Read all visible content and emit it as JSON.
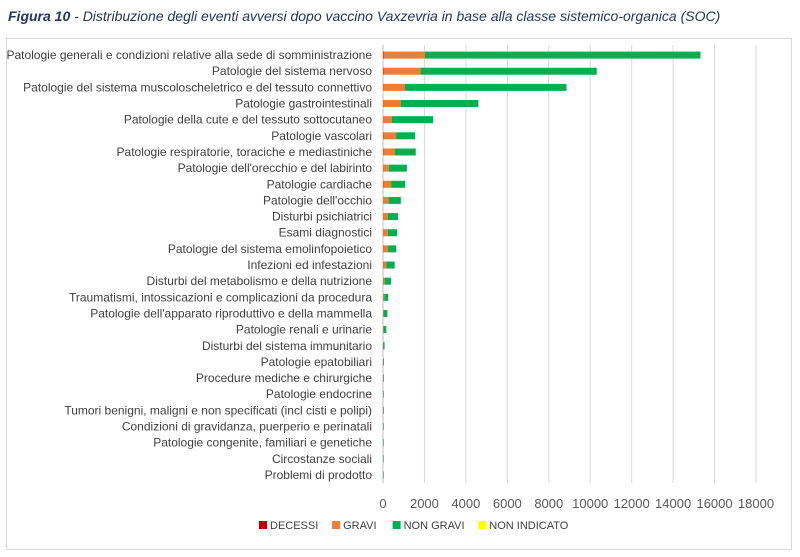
{
  "title": {
    "label": "Figura 10",
    "text": " - Distribuzione degli eventi avversi dopo vaccino Vaxzevria in base alla classe sistemico-organica (SOC)"
  },
  "chart_data": {
    "type": "bar",
    "orientation": "horizontal",
    "stacked": true,
    "categories": [
      "Patologie generali e condizioni relative alla sede di somministrazione",
      "Patologie del sistema nervoso",
      "Patologie del sistema muscoloscheletrico e del tessuto connettivo",
      "Patologie gastrointestinali",
      "Patologie della cute e del tessuto sottocutaneo",
      "Patologie vascolari",
      "Patologie respiratorie, toraciche e mediastiniche",
      "Patologie dell'orecchio e del labirinto",
      "Patologie cardiache",
      "Patologie dell'occhio",
      "Disturbi psichiatrici",
      "Esami diagnostici",
      "Patologie del sistema emolinfopoietico",
      "Infezioni ed infestazioni",
      "Disturbi del metabolismo e della nutrizione",
      "Traumatismi, intossicazioni e complicazioni da procedura",
      "Patologie dell'apparato riproduttivo e della mammella",
      "Patologie renali e urinarie",
      "Disturbi del sistema immunitario",
      "Patologie epatobiliari",
      "Procedure mediche e chirurgiche",
      "Patologie endocrine",
      "Tumori benigni, maligni e non specificati (incl cisti e polipi)",
      "Condizioni di gravidanza, puerperio e perinatali",
      "Patologie congenite, familiari e genetiche",
      "Circostanze sociali",
      "Problemi di prodotto"
    ],
    "series": [
      {
        "name": "DECESSI",
        "color": "#c00000",
        "values": [
          20,
          15,
          5,
          5,
          2,
          10,
          10,
          1,
          10,
          1,
          2,
          3,
          3,
          5,
          2,
          2,
          1,
          1,
          1,
          1,
          1,
          0,
          1,
          0,
          0,
          0,
          0
        ]
      },
      {
        "name": "GRAVI",
        "color": "#ed7d31",
        "values": [
          2000,
          1800,
          1050,
          850,
          420,
          620,
          570,
          280,
          380,
          290,
          240,
          230,
          240,
          160,
          80,
          60,
          30,
          30,
          15,
          10,
          8,
          5,
          5,
          5,
          3,
          1,
          1
        ]
      },
      {
        "name": "NON GRAVI",
        "color": "#00b050",
        "values": [
          13300,
          8500,
          7800,
          3750,
          2000,
          920,
          1000,
          870,
          680,
          570,
          480,
          450,
          400,
          400,
          310,
          190,
          180,
          130,
          60,
          30,
          25,
          15,
          10,
          5,
          5,
          3,
          2
        ]
      },
      {
        "name": "NON INDICATO",
        "color": "#ffff00",
        "values": [
          0,
          0,
          0,
          0,
          0,
          0,
          0,
          0,
          0,
          0,
          0,
          0,
          0,
          0,
          0,
          0,
          0,
          0,
          0,
          0,
          0,
          0,
          0,
          0,
          0,
          0,
          0
        ]
      }
    ],
    "xticks": [
      0,
      2000,
      4000,
      6000,
      8000,
      10000,
      12000,
      14000,
      16000,
      18000
    ],
    "xlim": [
      0,
      18000
    ],
    "grid": true,
    "legend": "bottom"
  }
}
